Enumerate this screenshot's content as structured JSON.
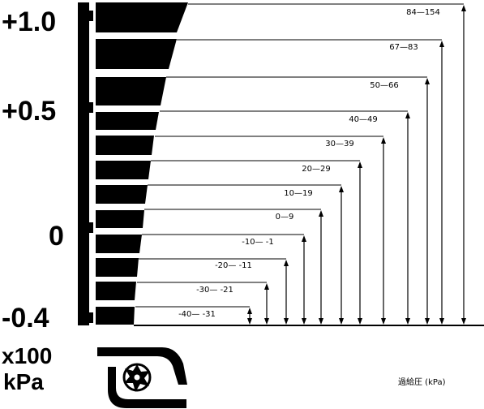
{
  "scale": {
    "ticks": [
      {
        "label": "+1.0",
        "value": 1.0
      },
      {
        "label": "+0.5",
        "value": 0.5
      },
      {
        "label": "0",
        "value": 0.0
      },
      {
        "label": "-0.4",
        "value": -0.4
      }
    ],
    "unit_line1": "x100",
    "unit_line2": "kPa"
  },
  "ranges": [
    {
      "label": "84—154"
    },
    {
      "label": "67—83"
    },
    {
      "label": "50—66"
    },
    {
      "label": "40—49"
    },
    {
      "label": "30—39"
    },
    {
      "label": "20—29"
    },
    {
      "label": "10—19"
    },
    {
      "label": "0—9"
    },
    {
      "label": "-10— -1"
    },
    {
      "label": "-20— -11"
    },
    {
      "label": "-30— -21"
    },
    {
      "label": "-40— -31"
    }
  ],
  "caption": "過給圧 (kPa)",
  "icon": "turbocharger-icon"
}
